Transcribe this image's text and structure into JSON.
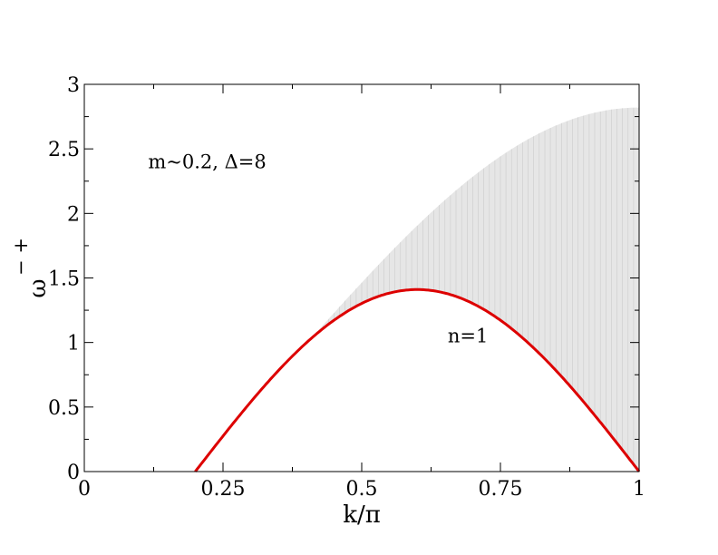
{
  "chart_data": {
    "type": "line",
    "title": "",
    "xlabel": "k/π",
    "ylabel": "ω",
    "ylabel_superscript": "− +",
    "xlim": [
      0,
      1
    ],
    "ylim": [
      0,
      3
    ],
    "x_ticks": [
      "0",
      "0.25",
      "0.5",
      "0.75",
      "1"
    ],
    "x_tick_values": [
      0,
      0.25,
      0.5,
      0.75,
      1
    ],
    "y_ticks": [
      "0",
      "0.5",
      "1",
      "1.5",
      "2",
      "2.5",
      "3"
    ],
    "y_tick_values": [
      0,
      0.5,
      1,
      1.5,
      2,
      2.5,
      3
    ],
    "grid": false,
    "annotations": [
      {
        "text": "m~0.2, Δ=8",
        "x": 0.115,
        "y": 2.35
      },
      {
        "text": "n=1",
        "x": 0.655,
        "y": 1.0
      }
    ],
    "continuum": {
      "description_color": "#d3d3d3",
      "lower_edge": {
        "x": [
          0.2,
          0.3,
          0.4,
          0.5,
          0.6,
          0.7,
          0.8,
          0.9,
          1.0
        ],
        "y": [
          0,
          0.52,
          0.99,
          1.31,
          1.41,
          1.31,
          1.0,
          0.53,
          0
        ]
      },
      "upper_edge": {
        "x": [
          0.4,
          0.5,
          0.6,
          0.7,
          0.8,
          0.9,
          1.0
        ],
        "y": [
          0.99,
          1.6,
          2.1,
          2.45,
          2.67,
          2.79,
          2.82
        ]
      }
    },
    "series": [
      {
        "color": "#dd0000",
        "x": [
          0.2,
          0.25,
          0.3,
          0.35,
          0.4,
          0.45,
          0.5,
          0.55,
          0.6,
          0.65,
          0.7,
          0.75,
          0.8,
          0.85,
          0.9,
          0.95,
          1.0
        ],
        "y": [
          0,
          0.27,
          0.52,
          0.77,
          0.99,
          1.18,
          1.31,
          1.39,
          1.41,
          1.38,
          1.31,
          1.18,
          1.0,
          0.78,
          0.53,
          0.27,
          0
        ]
      }
    ]
  }
}
